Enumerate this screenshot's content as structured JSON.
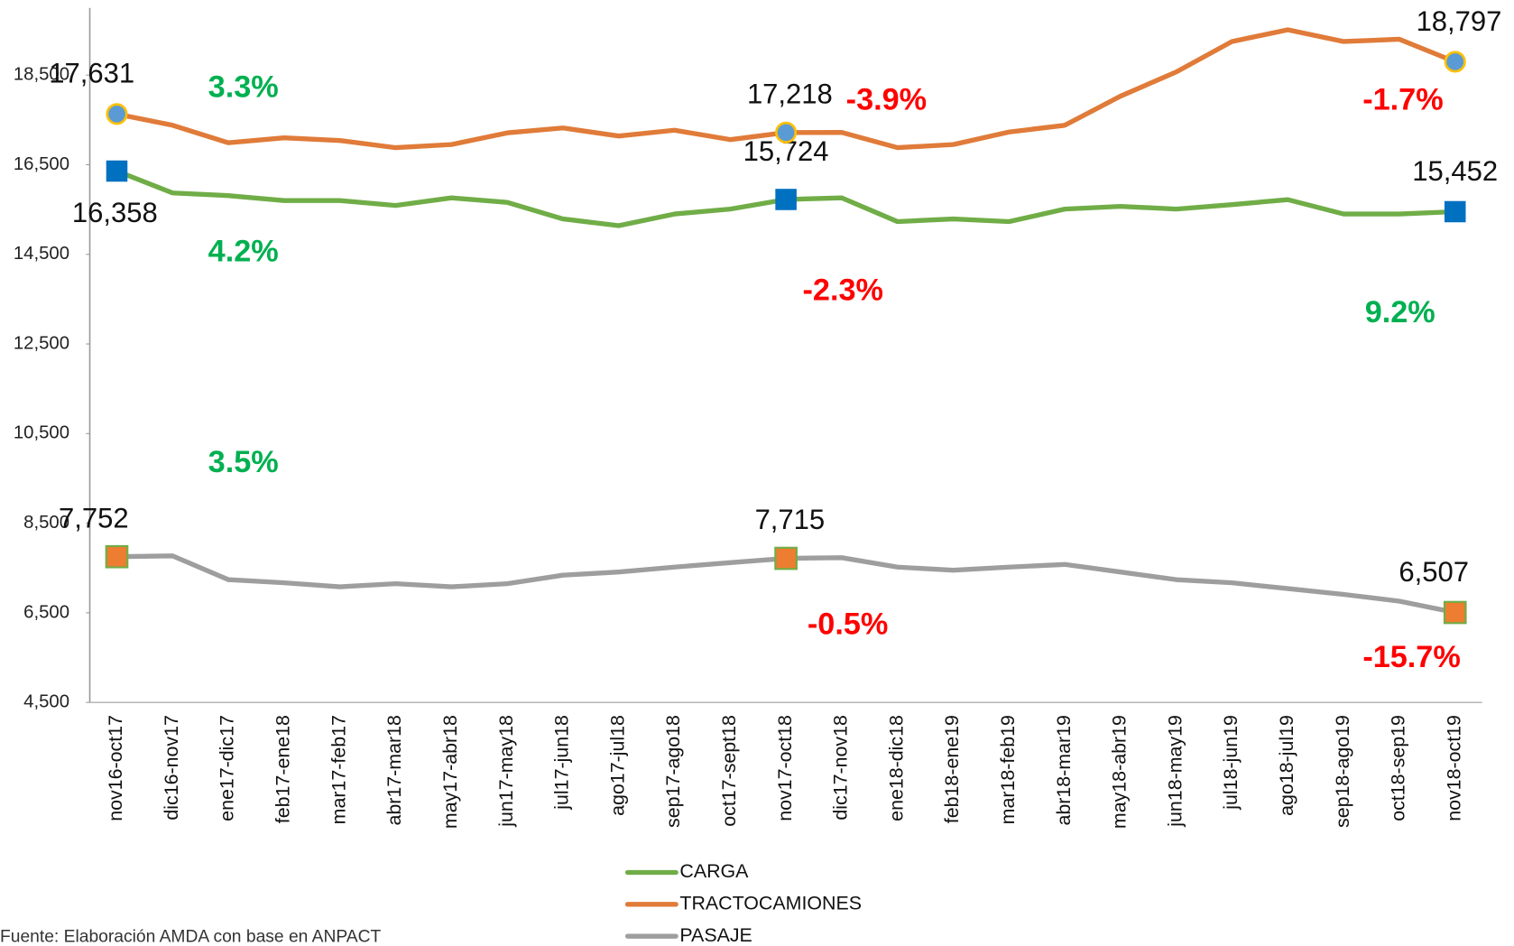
{
  "chart_data": {
    "type": "line",
    "categories": [
      "nov16-oct17",
      "dic16-nov17",
      "ene17-dic17",
      "feb17-ene18",
      "mar17-feb17",
      "abr17-mar18",
      "may17-abr18",
      "jun17-may18",
      "jul17-jun18",
      "ago17-jul18",
      "sep17-ago18",
      "oct17-sept18",
      "nov17-oct18",
      "dic17-nov18",
      "ene18-dic18",
      "feb18-ene19",
      "mar18-feb19",
      "abr18-mar19",
      "may18-abr19",
      "jun18-may19",
      "jul18-jun19",
      "ago18-jul19",
      "sep18-ago19",
      "oct18-sep19",
      "nov18-oct19"
    ],
    "series": [
      {
        "name": "CARGA",
        "color": "#70ad47",
        "marker": "square",
        "marker_color": "#0070c0",
        "values": [
          16358,
          15870,
          15810,
          15700,
          15700,
          15590,
          15760,
          15660,
          15290,
          15140,
          15400,
          15510,
          15724,
          15760,
          15230,
          15290,
          15230,
          15510,
          15570,
          15510,
          15610,
          15720,
          15400,
          15400,
          15452
        ],
        "value_labels": [
          "16,358",
          null,
          null,
          null,
          null,
          null,
          null,
          null,
          null,
          null,
          null,
          null,
          "15,724",
          null,
          null,
          null,
          null,
          null,
          null,
          null,
          null,
          null,
          null,
          null,
          "15,452"
        ]
      },
      {
        "name": "TRACTOCAMIONES",
        "color": "#e07b39",
        "marker": "circle",
        "marker_color": "#5b9bd5",
        "values": [
          17631,
          17380,
          16990,
          17100,
          17040,
          16880,
          16950,
          17210,
          17320,
          17140,
          17270,
          17060,
          17218,
          17220,
          16880,
          16950,
          17230,
          17380,
          18030,
          18570,
          19250,
          19510,
          19250,
          19300,
          18797
        ],
        "value_labels": [
          "17,631",
          null,
          null,
          null,
          null,
          null,
          null,
          null,
          null,
          null,
          null,
          null,
          "17,218",
          null,
          null,
          null,
          null,
          null,
          null,
          null,
          null,
          null,
          null,
          null,
          "18,797"
        ]
      },
      {
        "name": "PASAJE",
        "color": "#9e9e9e",
        "marker": "square",
        "marker_color": "#ed7d31",
        "values": [
          7752,
          7770,
          7240,
          7170,
          7080,
          7150,
          7080,
          7150,
          7340,
          7410,
          7520,
          7620,
          7715,
          7730,
          7520,
          7450,
          7520,
          7580,
          7410,
          7240,
          7170,
          7040,
          6910,
          6760,
          6507
        ],
        "value_labels": [
          "7,752",
          null,
          null,
          null,
          null,
          null,
          null,
          null,
          null,
          null,
          null,
          null,
          "7,715",
          null,
          null,
          null,
          null,
          null,
          null,
          null,
          null,
          null,
          null,
          null,
          "6,507"
        ]
      }
    ],
    "ylim": [
      4500,
      20000
    ],
    "yticks": [
      {
        "value": 4500,
        "label": "4,500"
      },
      {
        "value": 6500,
        "label": "6,500"
      },
      {
        "value": 8500,
        "label": "8,500"
      },
      {
        "value": 10500,
        "label": "10,500"
      },
      {
        "value": 12500,
        "label": "12,500"
      },
      {
        "value": 14500,
        "label": "14,500"
      },
      {
        "value": 16500,
        "label": "16,500"
      },
      {
        "value": 18500,
        "label": "18,500"
      }
    ],
    "annotations": [
      {
        "text": "3.3%",
        "color": "#00b050"
      },
      {
        "text": "4.2%",
        "color": "#00b050"
      },
      {
        "text": "3.5%",
        "color": "#00b050"
      },
      {
        "text": "-3.9%",
        "color": "#ff0000"
      },
      {
        "text": "-2.3%",
        "color": "#ff0000"
      },
      {
        "text": "-0.5%",
        "color": "#ff0000"
      },
      {
        "text": "-1.7%",
        "color": "#ff0000"
      },
      {
        "text": "9.2%",
        "color": "#00b050"
      },
      {
        "text": "-15.7%",
        "color": "#ff0000"
      }
    ],
    "legend": "bottom",
    "source": "Fuente: Elaboración AMDA con base en ANPACT"
  }
}
